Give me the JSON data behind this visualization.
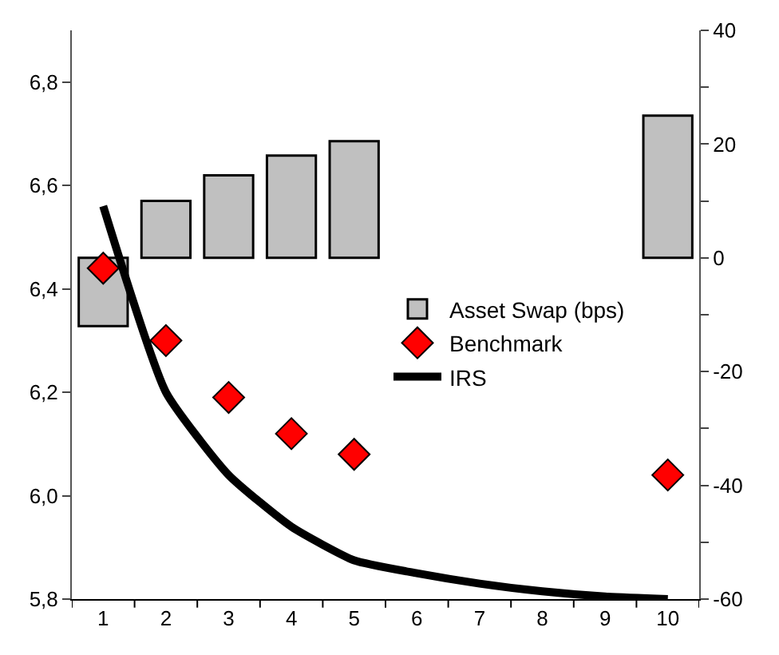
{
  "chart_data": {
    "type": "bar",
    "categories": [
      "1",
      "2",
      "3",
      "4",
      "5",
      "6",
      "7",
      "8",
      "9",
      "10"
    ],
    "series": [
      {
        "name": "Asset Swap (bps)",
        "axis": "y2",
        "color": "#c0c0c0",
        "values": [
          -12,
          10,
          14.5,
          18,
          20.5,
          null,
          null,
          null,
          null,
          25
        ]
      },
      {
        "name": "Benchmark",
        "type": "scatter",
        "marker": "diamond",
        "color": "#ff0000",
        "values": [
          6.44,
          6.3,
          6.19,
          6.12,
          6.08,
          null,
          null,
          null,
          null,
          6.04
        ]
      },
      {
        "name": "IRS",
        "type": "line",
        "color": "#000000",
        "values": [
          6.56,
          6.2,
          6.04,
          5.94,
          5.875,
          5.85,
          5.83,
          5.815,
          5.805,
          5.8
        ]
      }
    ],
    "ylim": [
      5.8,
      6.9
    ],
    "yticks": [
      {
        "value": 5.8,
        "label": "5,8"
      },
      {
        "value": 6.0,
        "label": "6,0"
      },
      {
        "value": 6.2,
        "label": "6,2"
      },
      {
        "value": 6.4,
        "label": "6,4"
      },
      {
        "value": 6.6,
        "label": "6,6"
      },
      {
        "value": 6.8,
        "label": "6,8"
      }
    ],
    "y2lim": [
      -60,
      40
    ],
    "y2ticks": [
      -60,
      {
        "value": -50,
        "label": null
      },
      -40,
      {
        "value": -30,
        "label": null
      },
      -20,
      {
        "value": -10,
        "label": null
      },
      0,
      {
        "value": 10,
        "label": null
      },
      20,
      {
        "value": 30,
        "label": null
      },
      40
    ],
    "legend": "center"
  }
}
